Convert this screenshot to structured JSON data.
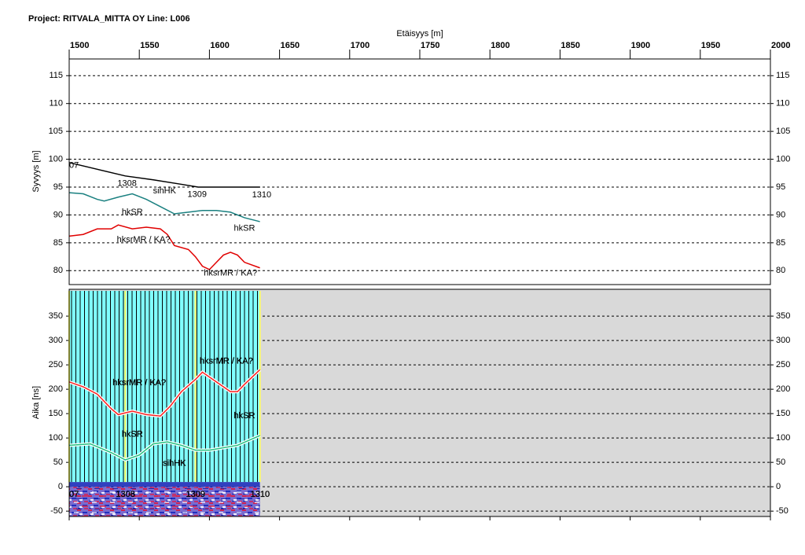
{
  "chart_data": [
    {
      "type": "line",
      "title": "Project: RITVALA_MITTA OY  Line: L006",
      "xlabel": "Etäisyys [m]",
      "ylabel": "Syvyys [m]",
      "xlim": [
        1500,
        2000
      ],
      "xticks": [
        1500,
        1550,
        1600,
        1650,
        1700,
        1750,
        1800,
        1850,
        1900,
        1950,
        2000
      ],
      "ylim": [
        77.5,
        118
      ],
      "yticks": [
        80,
        85,
        90,
        95,
        100,
        105,
        110,
        115
      ],
      "grid": true,
      "series": [
        {
          "color": "#000000",
          "x": [
            1500,
            1520,
            1540,
            1560,
            1580,
            1592,
            1636
          ],
          "values": [
            99.4,
            98.2,
            97,
            96.3,
            95.5,
            95,
            95
          ]
        },
        {
          "color": "#1a8080",
          "x": [
            1500,
            1510,
            1520,
            1525,
            1535,
            1545,
            1555,
            1565,
            1575,
            1585,
            1595,
            1605,
            1615,
            1625,
            1636
          ],
          "values": [
            94,
            93.8,
            92.8,
            92.5,
            93.2,
            93.8,
            92.8,
            91.5,
            90.2,
            90.5,
            90.8,
            90.8,
            90.5,
            89.5,
            88.8
          ]
        },
        {
          "color": "#e00000",
          "x": [
            1500,
            1510,
            1520,
            1530,
            1535,
            1545,
            1555,
            1565,
            1570,
            1575,
            1585,
            1590,
            1595,
            1600,
            1605,
            1610,
            1615,
            1620,
            1625,
            1636
          ],
          "values": [
            86.2,
            86.5,
            87.5,
            87.5,
            88.2,
            87.5,
            87.8,
            87.5,
            86.5,
            84.5,
            83.8,
            82.5,
            80.8,
            80.2,
            81.5,
            82.8,
            83.3,
            82.8,
            81.5,
            80.5
          ]
        }
      ],
      "markers": [
        {
          "label": "07",
          "x": 1500
        },
        {
          "label": "1308",
          "x": 1540
        },
        {
          "label": "1309",
          "x": 1590
        },
        {
          "label": "1310",
          "x": 1636
        }
      ],
      "annotations": [
        {
          "text": "sihHK",
          "x": 1568,
          "y": 94.3
        },
        {
          "text": "hkSR",
          "x": 1545,
          "y": 90.5
        },
        {
          "text": "hkSR",
          "x": 1625,
          "y": 87.6
        },
        {
          "text": "hksrMR / KA?",
          "x": 1553,
          "y": 85.5
        },
        {
          "text": "hksrMR / KA?",
          "x": 1615,
          "y": 79.5
        }
      ]
    },
    {
      "type": "radargram",
      "ylabel": "Aika [ns]",
      "xlim": [
        1500,
        2000
      ],
      "ylim": [
        -61,
        405
      ],
      "yticks": [
        -50,
        0,
        50,
        100,
        150,
        200,
        250,
        300,
        350
      ],
      "grid": true,
      "series": [
        {
          "color": "#20c080",
          "x": [
            1500,
            1515,
            1530,
            1540,
            1550,
            1560,
            1570,
            1580,
            1590,
            1600,
            1610,
            1620,
            1636
          ],
          "values": [
            85,
            88,
            70,
            55,
            65,
            88,
            92,
            85,
            75,
            75,
            80,
            85,
            105
          ]
        },
        {
          "color": "#ff2020",
          "x": [
            1500,
            1510,
            1520,
            1530,
            1535,
            1545,
            1555,
            1565,
            1572,
            1580,
            1590,
            1595,
            1605,
            1615,
            1620,
            1625,
            1636
          ],
          "values": [
            215,
            205,
            190,
            160,
            148,
            155,
            148,
            145,
            165,
            195,
            220,
            235,
            215,
            195,
            195,
            210,
            240
          ]
        }
      ],
      "markers": [
        {
          "label": "07",
          "x": 1500
        },
        {
          "label": "1308",
          "x": 1540
        },
        {
          "label": "1309",
          "x": 1590
        },
        {
          "label": "1310",
          "x": 1636
        }
      ],
      "annotations": [
        {
          "text": "sihHK",
          "x": 1575,
          "y": 48
        },
        {
          "text": "hkSR",
          "x": 1545,
          "y": 107
        },
        {
          "text": "hkSR",
          "x": 1625,
          "y": 145
        },
        {
          "text": "hksrMR / KA?",
          "x": 1550,
          "y": 213
        },
        {
          "text": "hksrMR / KA?",
          "x": 1612,
          "y": 257
        }
      ]
    }
  ]
}
